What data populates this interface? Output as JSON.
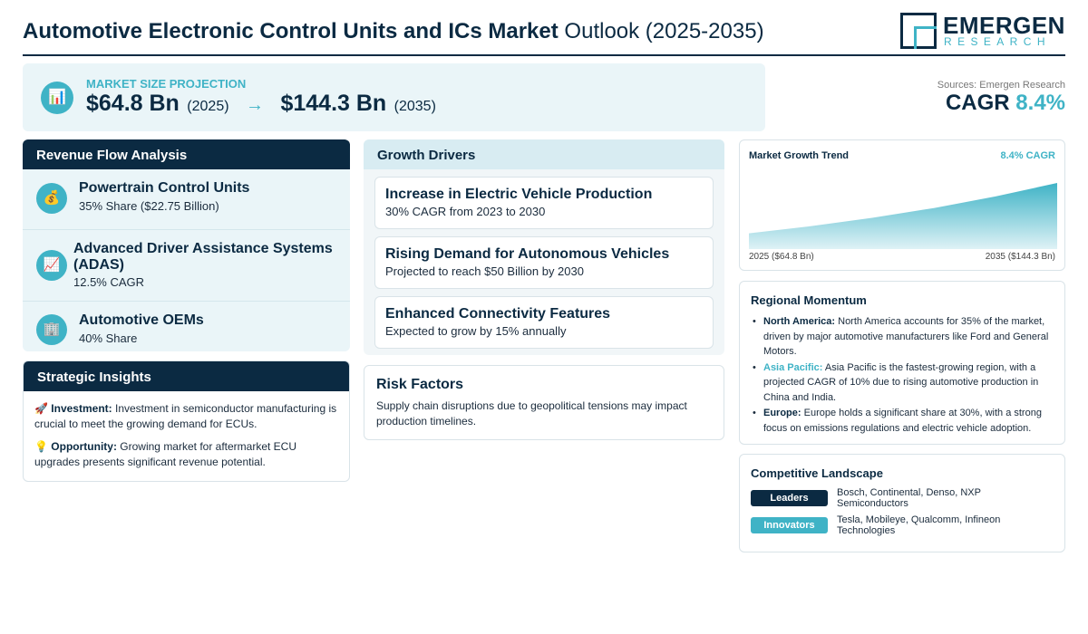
{
  "header": {
    "title_bold": "Automotive Electronic Control Units and ICs Market",
    "title_rest": "Outlook (2025-2035)",
    "logo_name": "EMERGEN",
    "logo_sub": "RESEARCH"
  },
  "projection": {
    "icon": "bar-chart-icon",
    "label": "MARKET SIZE PROJECTION",
    "start_value": "$64.8 Bn",
    "start_year": "(2025)",
    "arrow": "→",
    "end_value": "$144.3 Bn",
    "end_year": "(2035)"
  },
  "sources": "Sources: Emergen Research",
  "cagr": {
    "label": "CAGR",
    "value": "8.4%"
  },
  "revenue_flow": {
    "title": "Revenue Flow Analysis",
    "items": [
      {
        "icon": "money-bag-icon",
        "glyph": "💰",
        "name": "Powertrain Control Units",
        "detail": "35% Share ($22.75 Billion)"
      },
      {
        "icon": "chart-up-icon",
        "glyph": "📈",
        "name": "Advanced Driver Assistance Systems (ADAS)",
        "detail": "12.5% CAGR"
      },
      {
        "icon": "office-building-icon",
        "glyph": "🏢",
        "name": "Automotive OEMs",
        "detail": "40% Share"
      }
    ]
  },
  "strategic_insights": {
    "title": "Strategic Insights",
    "items": [
      {
        "icon": "rocket-icon",
        "glyph": "🚀",
        "label": "Investment:",
        "text": "Investment in semiconductor manufacturing is crucial to meet the growing demand for ECUs."
      },
      {
        "icon": "lightbulb-icon",
        "glyph": "💡",
        "label": "Opportunity:",
        "text": "Growing market for aftermarket ECU upgrades presents significant revenue potential."
      }
    ]
  },
  "growth_drivers": {
    "title": "Growth Drivers",
    "items": [
      {
        "title": "Increase in Electric Vehicle Production",
        "detail": "30% CAGR from 2023 to 2030"
      },
      {
        "title": "Rising Demand for Autonomous Vehicles",
        "detail": "Projected to reach $50 Billion by 2030"
      },
      {
        "title": "Enhanced Connectivity Features",
        "detail": "Expected to grow by 15% annually"
      }
    ]
  },
  "risk_factors": {
    "title": "Risk Factors",
    "text": "Supply chain disruptions due to geopolitical tensions may impact production timelines."
  },
  "market_trend": {
    "title": "Market Growth Trend",
    "cagr_label": "8.4% CAGR",
    "start_label": "2025 ($64.8 Bn)",
    "end_label": "2035 ($144.3 Bn)",
    "colors": {
      "top": "#3fb3c6",
      "bottom": "#dff2f6"
    }
  },
  "chart_data": {
    "type": "area",
    "title": "Market Growth Trend",
    "x": [
      2025,
      2035
    ],
    "series": [
      {
        "values": [
          64.8,
          144.3
        ]
      }
    ],
    "xlabel": "",
    "ylabel": "",
    "grid": false
  },
  "regional_momentum": {
    "title": "Regional Momentum",
    "items": [
      {
        "region": "North America:",
        "style": "dark",
        "text": "North America accounts for 35% of the market, driven by major automotive manufacturers like Ford and General Motors."
      },
      {
        "region": "Asia Pacific:",
        "style": "teal",
        "text": "Asia Pacific is the fastest-growing region, with a projected CAGR of 10% due to rising automotive production in China and India."
      },
      {
        "region": "Europe:",
        "style": "dark",
        "text": "Europe holds a significant share at 30%, with a strong focus on emissions regulations and electric vehicle adoption."
      }
    ]
  },
  "competitive_landscape": {
    "title": "Competitive Landscape",
    "leaders_label": "Leaders",
    "leaders": "Bosch, Continental, Denso, NXP Semiconductors",
    "innovators_label": "Innovators",
    "innovators": "Tesla, Mobileye, Qualcomm, Infineon Technologies"
  },
  "theme": {
    "navy": "#0b2a42",
    "teal": "#3fb3c6",
    "light_panel": "#eaf5f8"
  }
}
